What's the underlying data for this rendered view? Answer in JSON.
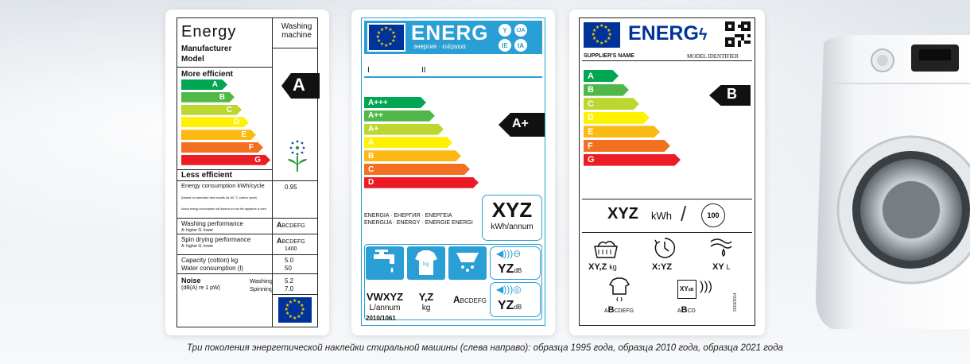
{
  "caption": "Три поколения энергетической наклейки стиральной машины (слева направо): образца 1995 года, образца 2010 года, образца 2021 года",
  "colors": {
    "A": "#00a651",
    "B": "#50b848",
    "C": "#bed630",
    "D": "#fff200",
    "E": "#fdb913",
    "F": "#f37021",
    "G": "#ed1c24",
    "eu_blue": "#003399",
    "accent": "#2a9fd6"
  },
  "label1995": {
    "title": "Energy",
    "appliance": "Washing machine",
    "manufacturer": "Manufacturer",
    "model": "Model",
    "more_efficient": "More efficient",
    "less_efficient": "Less efficient",
    "classes": [
      "A",
      "B",
      "C",
      "D",
      "E",
      "F",
      "G"
    ],
    "rating": "A",
    "energy_label": "Energy consumption kWh/cycle",
    "energy_note": "(based on standard test results for 60 °C cotton cycle)",
    "actual_note": "Actual energy consumption will depend on how the appliance is used",
    "energy_value": "0.95",
    "washing_perf": "Washing performance",
    "spin_perf": "Spin drying performance",
    "higher_lower": "A: higher  G: lower",
    "perf_scale_bold": "A",
    "perf_scale_rest": "BCDEFG",
    "spin_speed": "1400",
    "capacity": "Capacity (cotton) kg",
    "capacity_value": "5.0",
    "water": "Water consumption (l)",
    "water_value": "50",
    "noise": "Noise",
    "noise_unit": "(dB(A) re 1 pW)",
    "noise_washing": "Washing",
    "noise_spinning": "Spinning",
    "noise_washing_value": "5.2",
    "noise_spinning_value": "7.0"
  },
  "label2010": {
    "brand": "ENERG",
    "letters": [
      "Y",
      "IJA",
      "IE",
      "IA"
    ],
    "subline": "энергия · ενέργεια",
    "col1": "I",
    "col2": "II",
    "classes": [
      "A+++",
      "A++",
      "A+",
      "A",
      "B",
      "C",
      "D"
    ],
    "rating": "A+",
    "languages": "ENERGIA · ЕНЕРГИЯ · ΕΝΕΡΓΕΙΑ ENERGIJA · ENERGY · ENERGIE ENERGI",
    "kwh_value": "XYZ",
    "kwh_unit": "kWh/annum",
    "noise_value1": "YZ",
    "noise_value2": "YZ",
    "db": "dB",
    "water_value": "VWXYZ",
    "water_unit": "L/annum",
    "capacity_value": "Y,Z",
    "capacity_unit": "kg",
    "spin_scale_bold": "A",
    "spin_scale_rest": "BCDEFG",
    "regulation": "2010/1061"
  },
  "label2021": {
    "brand": "ENERG",
    "supplier": "SUPPLIER'S NAME",
    "model_id": "MODEL IDENTIFIER",
    "classes": [
      "A",
      "B",
      "C",
      "D",
      "E",
      "F",
      "G"
    ],
    "rating": "B",
    "kwh_value": "XYZ",
    "kwh_unit": "kWh",
    "cycles": "100",
    "capacity_value": "XY,Z",
    "capacity_unit": "kg",
    "duration_value": "X:YZ",
    "water_value": "XY",
    "water_unit": "L",
    "spin_scale_pre": "A",
    "spin_scale_bold": "B",
    "spin_scale_rest": "CDEFG",
    "noise_value": "XY",
    "noise_db": "dB",
    "noise_scale_pre": "A",
    "noise_scale_bold": "B",
    "noise_scale_rest": "CD",
    "regulation": "2019/2014"
  }
}
